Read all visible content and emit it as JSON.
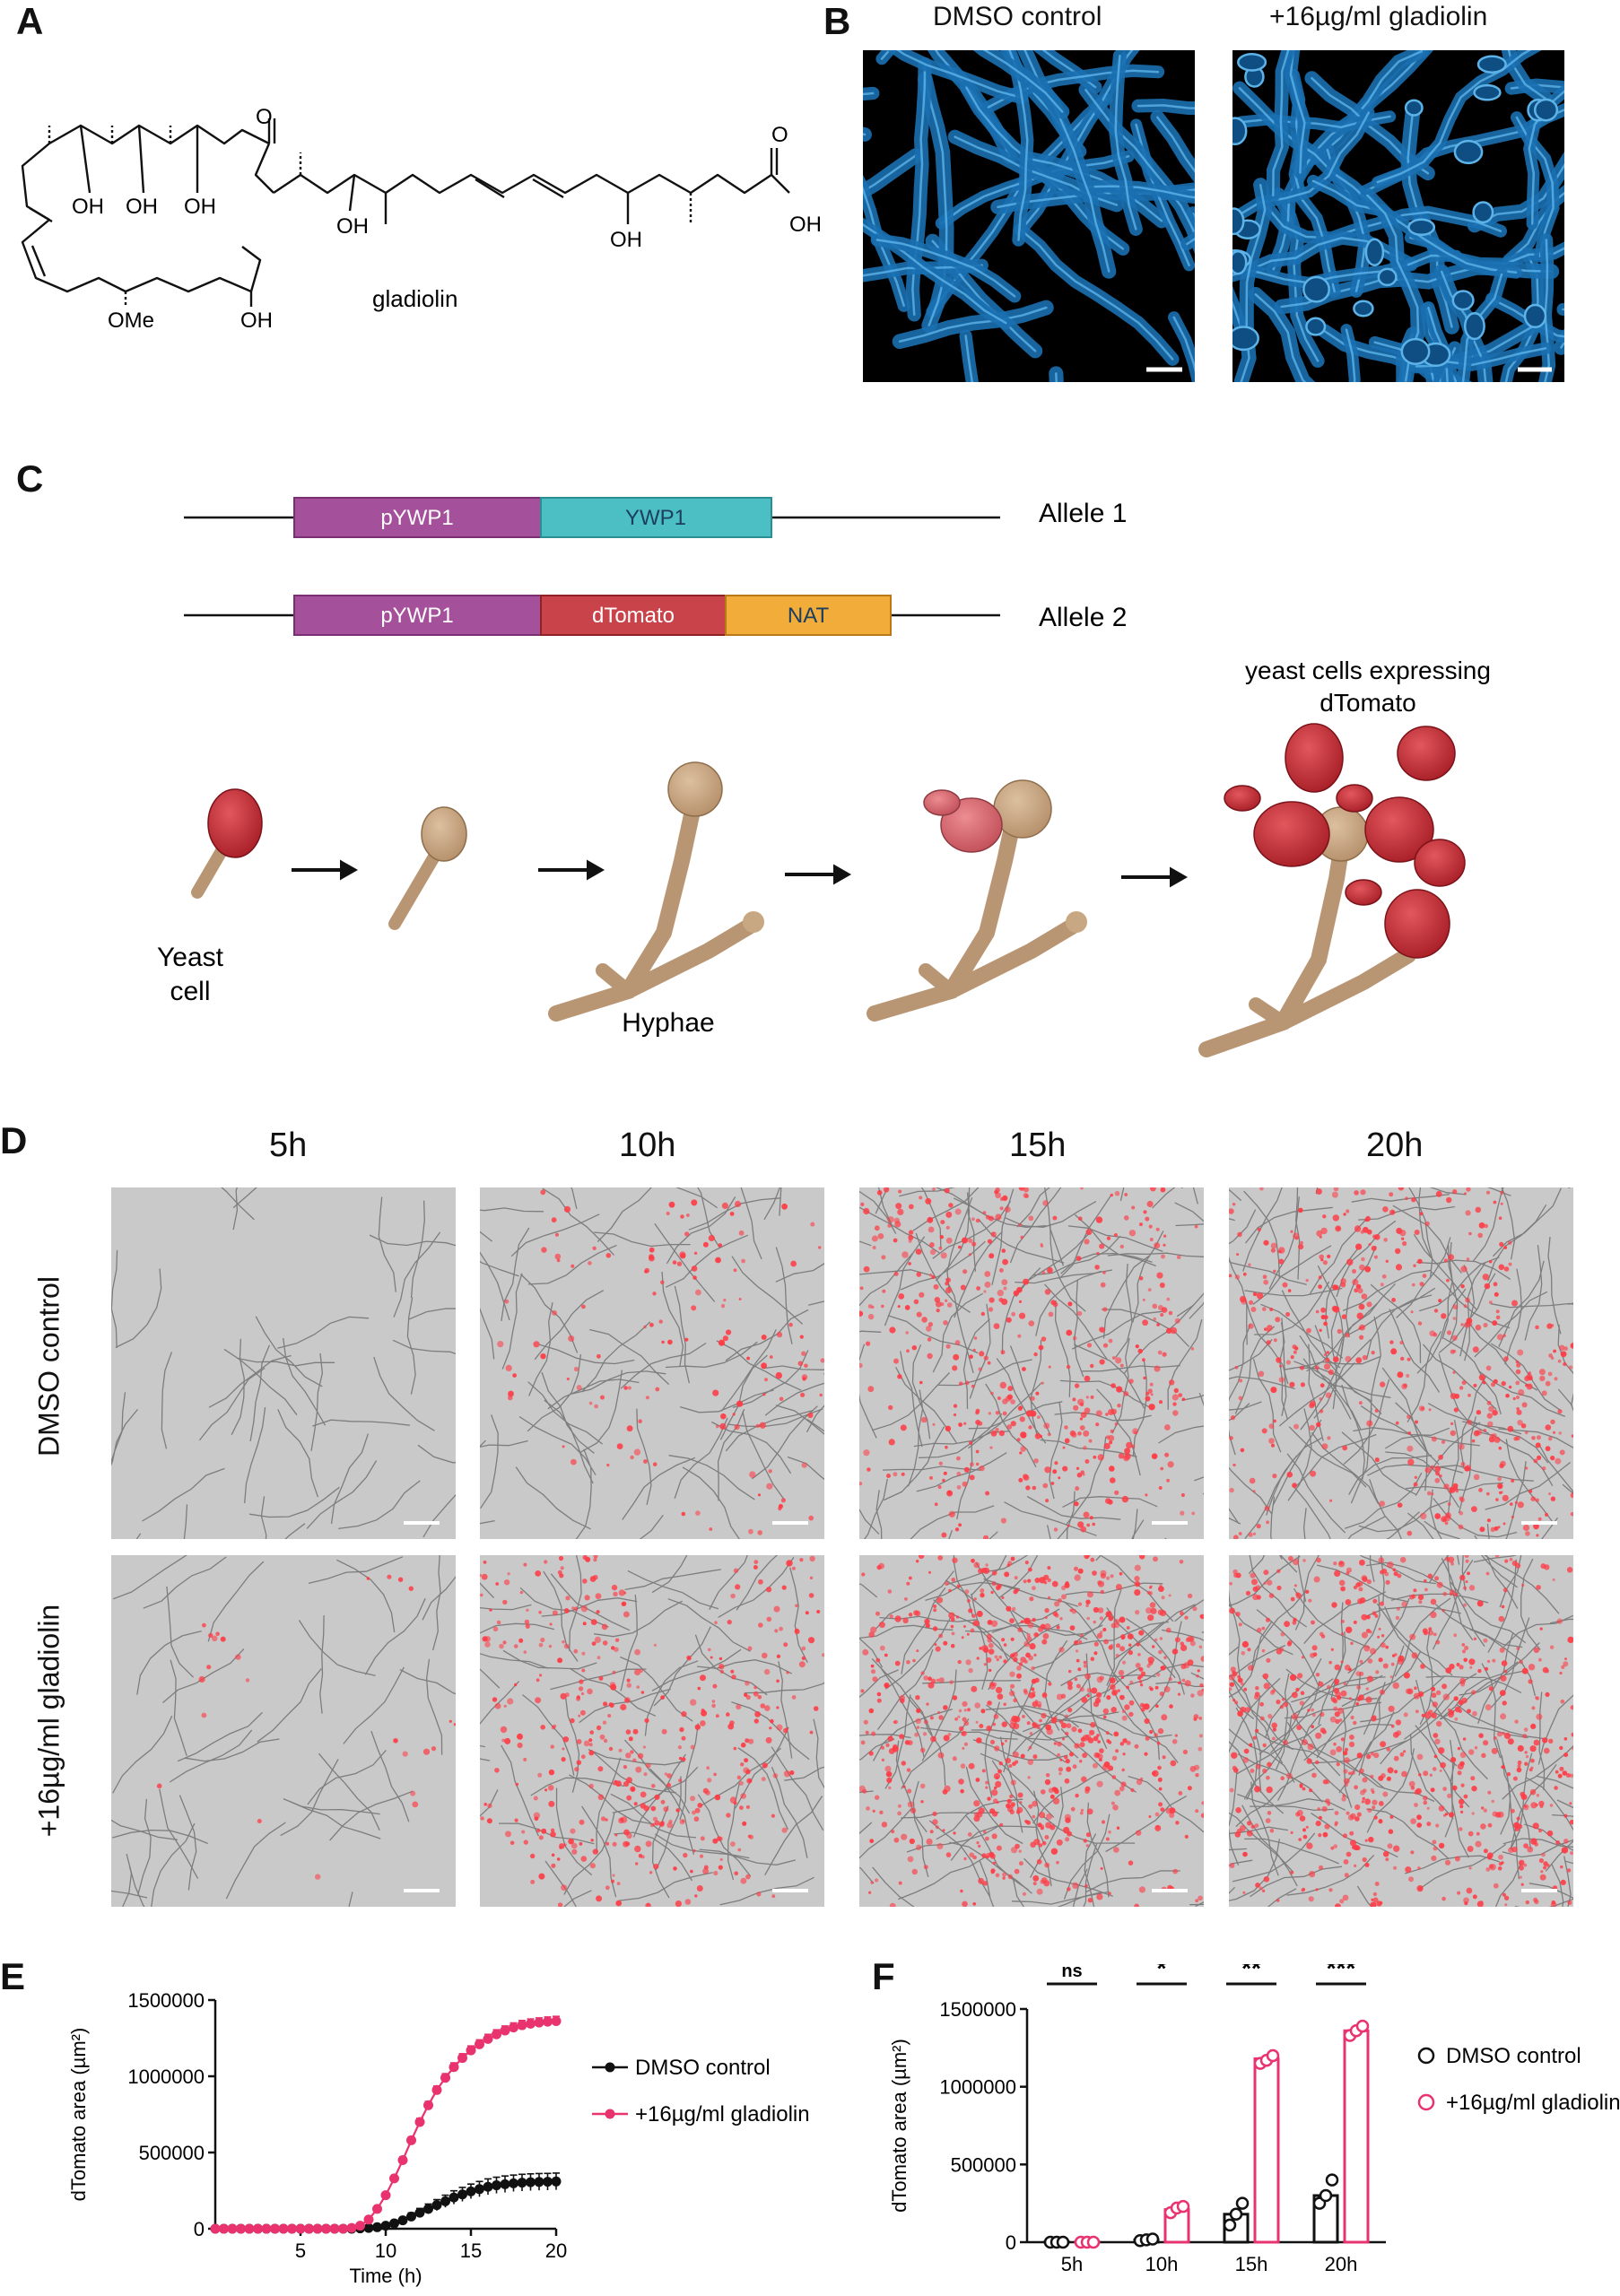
{
  "panels": {
    "a": "A",
    "b": "B",
    "c": "C",
    "d": "D",
    "e": "E",
    "f": "F"
  },
  "panel_a": {
    "compound_name": "gladiolin",
    "oh": "OH",
    "ome": "OMe",
    "o": "O"
  },
  "panel_b": {
    "left_title": "DMSO control",
    "right_title": "+16µg/ml gladiolin",
    "image_color": "#1a6fb0"
  },
  "panel_c": {
    "allele1": {
      "label": "Allele 1",
      "boxes": [
        {
          "text": "pYWP1",
          "color": "#a4509a"
        },
        {
          "text": "YWP1",
          "color": "#4bbfc4"
        }
      ]
    },
    "allele2": {
      "label": "Allele 2",
      "boxes": [
        {
          "text": "pYWP1",
          "color": "#a4509a"
        },
        {
          "text": "dTomato",
          "color": "#c9434a"
        },
        {
          "text": "NAT",
          "color": "#f2ac3a"
        }
      ]
    },
    "yeast_cell_label": "Yeast cell",
    "yeast_line1": "Yeast",
    "yeast_line2": "cell",
    "hyphae_label": "Hyphae",
    "expressing_line1": "yeast cells expressing",
    "expressing_line2": "dTomato",
    "tan_color": "#c8a882",
    "red_color": "#c0333a"
  },
  "panel_d": {
    "times": [
      "5h",
      "10h",
      "15h",
      "20h"
    ],
    "rows": [
      "DMSO control",
      "+16µg/ml gladiolin"
    ],
    "red_density": [
      [
        0,
        0.12,
        0.45,
        0.5
      ],
      [
        0.02,
        0.45,
        0.92,
        0.9
      ]
    ]
  },
  "panel_e": {
    "chart_data": {
      "type": "line",
      "xlabel": "Time (h)",
      "ylabel": "dTomato area (µm²)",
      "xlim": [
        0,
        20
      ],
      "ylim": [
        0,
        1500000
      ],
      "xticks": [
        5,
        10,
        15,
        20
      ],
      "yticks": [
        0,
        500000,
        1000000,
        1500000
      ],
      "ytick_labels": [
        "0",
        "500000",
        "1000000",
        "1500000"
      ],
      "legend_position": "right",
      "x": [
        0,
        0.5,
        1,
        1.5,
        2,
        2.5,
        3,
        3.5,
        4,
        4.5,
        5,
        5.5,
        6,
        6.5,
        7,
        7.5,
        8,
        8.5,
        9,
        9.5,
        10,
        10.5,
        11,
        11.5,
        12,
        12.5,
        13,
        13.5,
        14,
        14.5,
        15,
        15.5,
        16,
        16.5,
        17,
        17.5,
        18,
        18.5,
        19,
        19.5,
        20
      ],
      "series": [
        {
          "name": "DMSO control",
          "color": "#111111",
          "values": [
            0,
            0,
            0,
            0,
            0,
            0,
            0,
            0,
            0,
            0,
            0,
            0,
            0,
            0,
            0,
            0,
            0,
            2000,
            5000,
            10000,
            20000,
            35000,
            55000,
            80000,
            105000,
            130000,
            155000,
            180000,
            205000,
            225000,
            245000,
            260000,
            275000,
            285000,
            292000,
            298000,
            302000,
            305000,
            307000,
            308000,
            310000
          ],
          "errors": [
            0,
            0,
            0,
            0,
            0,
            0,
            0,
            0,
            0,
            0,
            0,
            0,
            0,
            0,
            0,
            0,
            0,
            2000,
            4000,
            8000,
            12000,
            16000,
            20000,
            24000,
            28000,
            32000,
            36000,
            40000,
            44000,
            46000,
            48000,
            50000,
            52000,
            53000,
            54000,
            54000,
            55000,
            55000,
            55000,
            55000,
            55000
          ]
        },
        {
          "name": "+16µg/ml gladiolin",
          "color": "#e8336f",
          "values": [
            0,
            0,
            0,
            0,
            0,
            0,
            0,
            0,
            0,
            0,
            0,
            0,
            0,
            0,
            0,
            0,
            5000,
            20000,
            60000,
            130000,
            220000,
            330000,
            450000,
            580000,
            700000,
            810000,
            910000,
            990000,
            1060000,
            1120000,
            1170000,
            1210000,
            1245000,
            1275000,
            1300000,
            1320000,
            1335000,
            1345000,
            1352000,
            1358000,
            1362000
          ],
          "errors": [
            0,
            0,
            0,
            0,
            0,
            0,
            0,
            0,
            0,
            0,
            0,
            0,
            0,
            0,
            0,
            0,
            2000,
            5000,
            8000,
            12000,
            15000,
            18000,
            20000,
            22000,
            24000,
            25000,
            26000,
            27000,
            28000,
            28000,
            29000,
            29000,
            30000,
            30000,
            30000,
            30000,
            31000,
            31000,
            31000,
            31000,
            31000
          ]
        }
      ]
    }
  },
  "panel_f": {
    "chart_data": {
      "type": "bar",
      "categories": [
        "5h",
        "10h",
        "15h",
        "20h"
      ],
      "ylabel": "dTomato area (µm²)",
      "ylim": [
        0,
        1500000
      ],
      "yticks": [
        0,
        500000,
        1000000,
        1500000
      ],
      "ytick_labels": [
        "0",
        "500000",
        "1000000",
        "1500000"
      ],
      "significance": [
        "ns",
        "*",
        "**",
        "***"
      ],
      "legend_position": "right",
      "series": [
        {
          "name": "DMSO control",
          "color": "#111111",
          "values": [
            3000,
            15000,
            180000,
            300000
          ],
          "points": [
            [
              0,
              0,
              0
            ],
            [
              10000,
              15000,
              20000
            ],
            [
              110000,
              180000,
              250000
            ],
            [
              250000,
              300000,
              400000
            ]
          ]
        },
        {
          "name": "+16µg/ml gladiolin",
          "color": "#e8336f",
          "values": [
            3000,
            210000,
            1180000,
            1360000
          ],
          "points": [
            [
              0,
              0,
              0
            ],
            [
              190000,
              220000,
              230000
            ],
            [
              1150000,
              1170000,
              1200000
            ],
            [
              1330000,
              1360000,
              1390000
            ]
          ]
        }
      ]
    }
  }
}
